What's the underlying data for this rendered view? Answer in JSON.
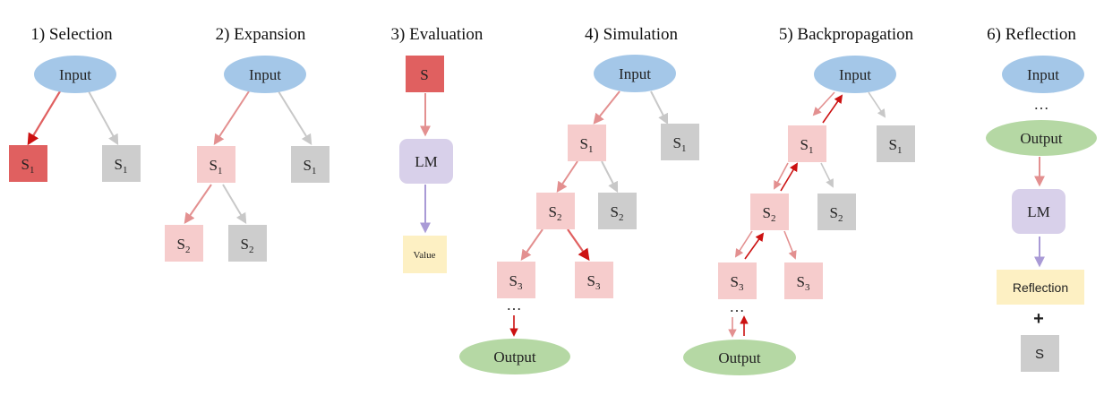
{
  "colors": {
    "node_input": "#a4c7e8",
    "node_output": "#b5d8a4",
    "node_selected": "#e06060",
    "node_pink": "#f6cccc",
    "node_gray": "#cdcdcd",
    "node_lm": "#d8d0ea",
    "node_value": "#fdf0c3",
    "arrow_pink": "#e39090",
    "arrow_red": "#cc1111",
    "arrow_gray": "#c8c8c8",
    "arrow_purple": "#a99ad6"
  },
  "panels": [
    {
      "title": "1) Selection"
    },
    {
      "title": "2) Expansion"
    },
    {
      "title": "3) Evaluation"
    },
    {
      "title": "4) Simulation"
    },
    {
      "title": "5) Backpropagation"
    },
    {
      "title": "6) Reflection"
    }
  ],
  "labels": {
    "input": "Input",
    "output": "Output",
    "state": "S",
    "lm": "LM",
    "value": "Value",
    "reflection": "Reflection",
    "plus": "+",
    "ellipsis": "…",
    "sub1": "1",
    "sub2": "2",
    "sub3": "3"
  }
}
